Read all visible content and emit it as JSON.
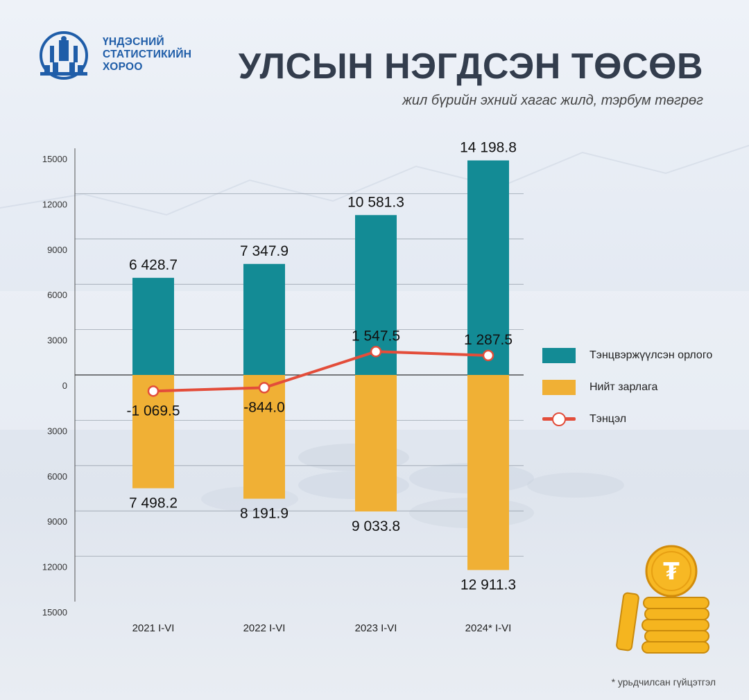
{
  "header": {
    "org_line1": "ҮНДЭСНИЙ",
    "org_line2": "СТАТИСТИКИЙН",
    "org_line3": "ХОРОО",
    "title": "УЛСЫН НЭГДСЭН ТӨСӨВ",
    "subtitle": "жил бүрийн эхний хагас жилд, тэрбум төгрөг"
  },
  "footnote": "* урьдчилсан гүйцэтгэл",
  "colors": {
    "revenue": "#138b95",
    "expenditure": "#f0b035",
    "balance": "#e34d3a",
    "title": "#333d4d",
    "brand": "#1f5da8"
  },
  "icons": [
    "state-emblem-icon",
    "tugrik-coin-icon"
  ],
  "chart_data": {
    "type": "bar",
    "categories": [
      "2021 I-VI",
      "2022 I-VI",
      "2023 I-VI",
      "2024* I-VI"
    ],
    "series": [
      {
        "name": "Тэнцвэржүүлсэн орлого",
        "values": [
          6428.7,
          7347.9,
          10581.3,
          14198.8
        ],
        "labels": [
          "6 428.7",
          "7 347.9",
          "10 581.3",
          "14 198.8"
        ]
      },
      {
        "name": "Нийт зарлага",
        "values": [
          -7498.2,
          -8191.9,
          -9033.8,
          -12911.3
        ],
        "labels": [
          "7 498.2",
          "8 191.9",
          "9 033.8",
          "12 911.3"
        ]
      },
      {
        "name": "Тэнцэл",
        "type": "line",
        "values": [
          -1069.5,
          -844.0,
          1547.5,
          1287.5
        ],
        "labels": [
          "-1 069.5",
          "-844.0",
          "1 547.5",
          "1 287.5"
        ]
      }
    ],
    "y_ticks": [
      "15000",
      "12000",
      "9000",
      "6000",
      "3000",
      "0",
      "3000",
      "6000",
      "9000",
      "12000",
      "15000"
    ],
    "y_tick_values": [
      15000,
      12000,
      9000,
      6000,
      3000,
      0,
      -3000,
      -6000,
      -9000,
      -12000,
      -15000
    ],
    "ylim": [
      -15000,
      15000
    ],
    "grid": true,
    "legend_position": "right"
  }
}
